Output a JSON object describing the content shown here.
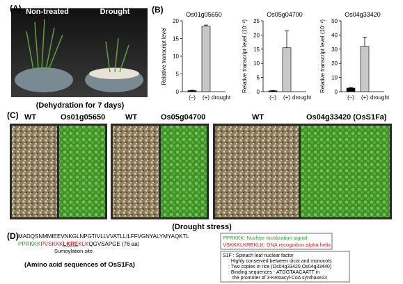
{
  "panel_a": {
    "label": "(A)",
    "left": "Non-treated",
    "right": "Drought",
    "caption": "(Dehydration for 7 days)"
  },
  "panel_b": {
    "label": "(B)"
  },
  "chart_data": [
    {
      "type": "bar",
      "title": "Os01g05650",
      "y_label": "Relative transcript level",
      "categories": [
        "(–)",
        "(+)"
      ],
      "x_label": "drought",
      "values": [
        0.3,
        18.5
      ],
      "errors": [
        0.1,
        0.3
      ],
      "colors": [
        "#000000",
        "#c8c8c8"
      ],
      "ylim": [
        0,
        20
      ],
      "yticks": [
        0,
        5,
        10,
        15,
        20
      ]
    },
    {
      "type": "bar",
      "title": "Os05g04700",
      "y_label": "Relative transcript level (10⁻²)",
      "categories": [
        "(–)",
        "(+)"
      ],
      "x_label": "drought",
      "values": [
        0.3,
        15.5
      ],
      "errors": [
        0.1,
        6
      ],
      "colors": [
        "#000000",
        "#c8c8c8"
      ],
      "ylim": [
        0,
        25
      ],
      "yticks": [
        0,
        5,
        10,
        15,
        20,
        25
      ]
    },
    {
      "type": "bar",
      "title": "Os04g33420",
      "y_label": "Relative transcript level (10⁻²)",
      "categories": [
        "(–)",
        "(+)"
      ],
      "x_label": "drought",
      "values": [
        2.5,
        32
      ],
      "errors": [
        0.5,
        6.5
      ],
      "colors": [
        "#000000",
        "#c8c8c8"
      ],
      "ylim": [
        0,
        50
      ],
      "yticks": [
        0,
        10,
        20,
        30,
        40,
        50
      ]
    }
  ],
  "panel_c": {
    "label": "(C)",
    "labels": [
      "WT",
      "Os01g05650",
      "WT",
      "Os05g04700",
      "WT",
      "Os04g33420 (OsS1Fa)"
    ],
    "caption": "(Drought stress)"
  },
  "panel_d": {
    "label": "(D)",
    "seq_line1": "MADQSNMMIEEVNKGLNPGTIVLLVVATLLILFFVGNYALYMYAQKTL",
    "seq_nls": "PPRKKK",
    "seq_red1": "PVSKKK",
    "seq_sumo": "LKRE",
    "seq_red2": "KLK",
    "seq_tail": "QGVSAPGE (76 aa)",
    "sumo_label": "Sumoylation site",
    "caption": "(Amino acid sequences of OsS1Fa)",
    "legend": [
      "PPRKKK: Nuclear localization signal",
      "VSKKKLKREKLK: DNA recognition alpha helix"
    ],
    "notes": [
      "S1F : Spinach leaf nuclear factor",
      ": Highly conserved between dicot and monocots",
      ": Two copies in rice (Os04g33420,Os04g33440)",
      ": Binding sequences - ATGGTAACAATT in",
      "the promoter of 3-Ketoacyl-CoA synthase13"
    ]
  }
}
